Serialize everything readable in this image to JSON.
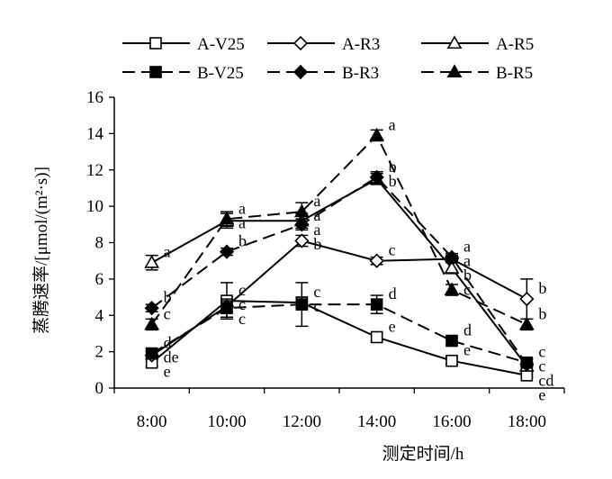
{
  "chart_data": {
    "type": "line",
    "xlabel": "测定时间/h",
    "ylabel": "蒸腾速率/[μmol/(m²·s)]",
    "categories": [
      "8:00",
      "10:00",
      "12:00",
      "14:00",
      "16:00",
      "18:00"
    ],
    "ylim": [
      0,
      16
    ],
    "yticks": [
      "0",
      "2",
      "4",
      "6",
      "8",
      "10",
      "12",
      "14",
      "16"
    ],
    "grid": false,
    "legend_position": "top",
    "series": [
      {
        "name": "A-V25",
        "line": "solid",
        "marker": "square",
        "filled": false,
        "values": [
          1.4,
          4.8,
          4.7,
          2.8,
          1.5,
          0.7
        ],
        "errors": [
          0.2,
          1.0,
          0.3,
          0.2,
          0.2,
          0.1
        ],
        "letters": [
          "e",
          "c",
          "c",
          "e",
          "e",
          "e"
        ]
      },
      {
        "name": "A-R3",
        "line": "solid",
        "marker": "diamond",
        "filled": false,
        "values": [
          1.8,
          4.5,
          8.1,
          7.0,
          7.1,
          4.9
        ],
        "errors": [
          0.2,
          0.3,
          0.3,
          0.2,
          0.2,
          1.1
        ],
        "letters": [
          "de",
          "c",
          "b",
          "c",
          "a",
          "b"
        ]
      },
      {
        "name": "A-R5",
        "line": "solid",
        "marker": "triangle",
        "filled": false,
        "values": [
          6.9,
          9.2,
          9.2,
          11.5,
          6.6,
          1.2
        ],
        "errors": [
          0.4,
          0.4,
          0.4,
          0.3,
          0.3,
          0.2
        ],
        "letters": [
          "a",
          "a",
          "a",
          "b",
          "b",
          "cd"
        ]
      },
      {
        "name": "B-V25",
        "line": "dashed",
        "marker": "square",
        "filled": true,
        "values": [
          1.9,
          4.4,
          4.6,
          4.6,
          2.6,
          1.4
        ],
        "errors": [
          0.3,
          0.5,
          1.2,
          0.5,
          0.2,
          0.2
        ],
        "letters": [
          "d",
          "c",
          "c",
          "d",
          "d",
          "c"
        ]
      },
      {
        "name": "B-R3",
        "line": "dashed",
        "marker": "diamond",
        "filled": true,
        "values": [
          4.4,
          7.5,
          9.0,
          11.6,
          7.2,
          1.3
        ],
        "errors": [
          0.2,
          0.2,
          0.3,
          0.3,
          0.2,
          0.1
        ],
        "letters": [
          "b",
          "b",
          "a",
          "b",
          "a",
          "c"
        ]
      },
      {
        "name": "B-R5",
        "line": "dashed",
        "marker": "triangle",
        "filled": true,
        "values": [
          3.5,
          9.3,
          9.7,
          13.9,
          5.4,
          3.5
        ],
        "errors": [
          0.3,
          0.4,
          0.5,
          0.3,
          0.3,
          0.3
        ],
        "letters": [
          "c",
          "a",
          "a",
          "a",
          "c",
          "b"
        ]
      }
    ]
  }
}
